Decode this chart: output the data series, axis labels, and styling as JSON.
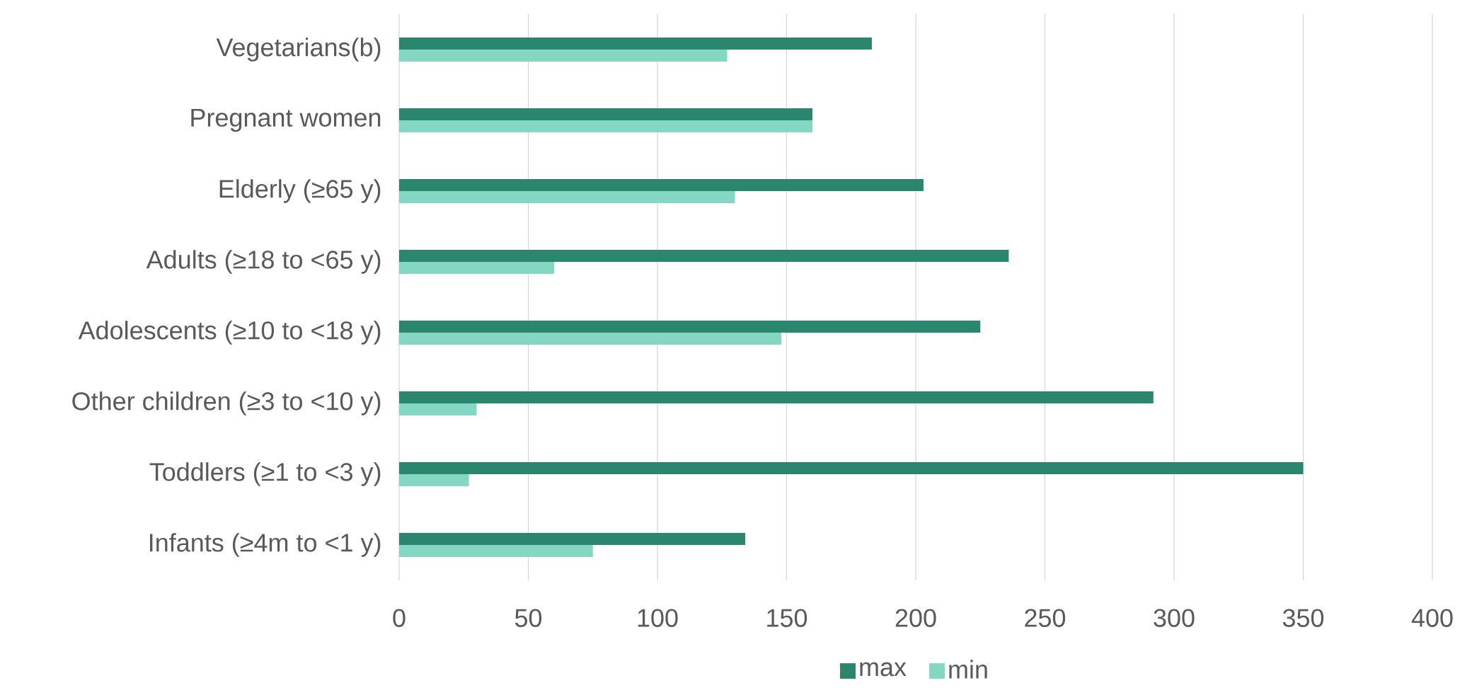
{
  "chart_data": {
    "type": "bar",
    "orientation": "horizontal",
    "categories": [
      "Vegetarians(b)",
      "Pregnant women",
      "Elderly (≥65 y)",
      "Adults (≥18 to <65 y)",
      "Adolescents (≥10 to <18 y)",
      "Other children (≥3 to <10 y)",
      "Toddlers (≥1 to <3 y)",
      "Infants (≥4m to <1 y)"
    ],
    "series": [
      {
        "name": "max",
        "color": "#2a876e",
        "values": [
          183,
          160,
          203,
          236,
          225,
          292,
          350,
          134
        ]
      },
      {
        "name": "min",
        "color": "#84d8c3",
        "values": [
          127,
          160,
          130,
          60,
          148,
          30,
          27,
          75
        ]
      }
    ],
    "xlim": [
      0,
      400
    ],
    "xticks": [
      0,
      50,
      100,
      150,
      200,
      250,
      300,
      350,
      400
    ],
    "grid": "x",
    "legend": "bottom"
  }
}
